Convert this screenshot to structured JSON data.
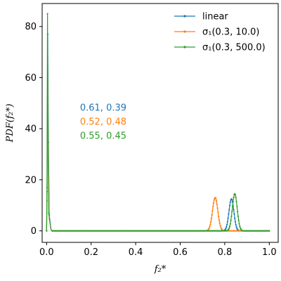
{
  "chart_data": {
    "type": "line",
    "xlabel": "f₂*",
    "ylabel": "PDF(f₂*)",
    "xlim": [
      -0.02,
      1.04
    ],
    "ylim": [
      -4.5,
      89
    ],
    "xticks": [
      0.0,
      0.2,
      0.4,
      0.6,
      0.8,
      1.0
    ],
    "xtick_labels": [
      "0.0",
      "0.2",
      "0.4",
      "0.6",
      "0.8",
      "1.0"
    ],
    "yticks": [
      0,
      20,
      40,
      60,
      80
    ],
    "ytick_labels": [
      "0",
      "20",
      "40",
      "60",
      "80"
    ],
    "grid": false,
    "legend_position": "top-right",
    "series": [
      {
        "name": "linear",
        "color": "#1f77b4",
        "spike_peak": 77,
        "spike_x": 0.005,
        "hump_center": 0.83,
        "hump_sigma": 0.011,
        "hump_peak": 12.5
      },
      {
        "name": "σ₁(0.3, 10.0)",
        "color": "#ff7f0e",
        "spike_peak": 59,
        "spike_x": 0.005,
        "hump_center": 0.757,
        "hump_sigma": 0.012,
        "hump_peak": 13
      },
      {
        "name": "σ₁(0.3, 500.0)",
        "color": "#2ca02c",
        "spike_peak": 85,
        "spike_x": 0.004,
        "hump_center": 0.845,
        "hump_sigma": 0.011,
        "hump_peak": 14.5
      }
    ],
    "annotations": [
      {
        "text": "0.61, 0.39",
        "color": "#1f77b4",
        "x": 0.15,
        "y": 47
      },
      {
        "text": "0.52, 0.48",
        "color": "#ff7f0e",
        "x": 0.15,
        "y": 41.5
      },
      {
        "text": "0.55, 0.45",
        "color": "#2ca02c",
        "x": 0.15,
        "y": 36
      }
    ]
  }
}
